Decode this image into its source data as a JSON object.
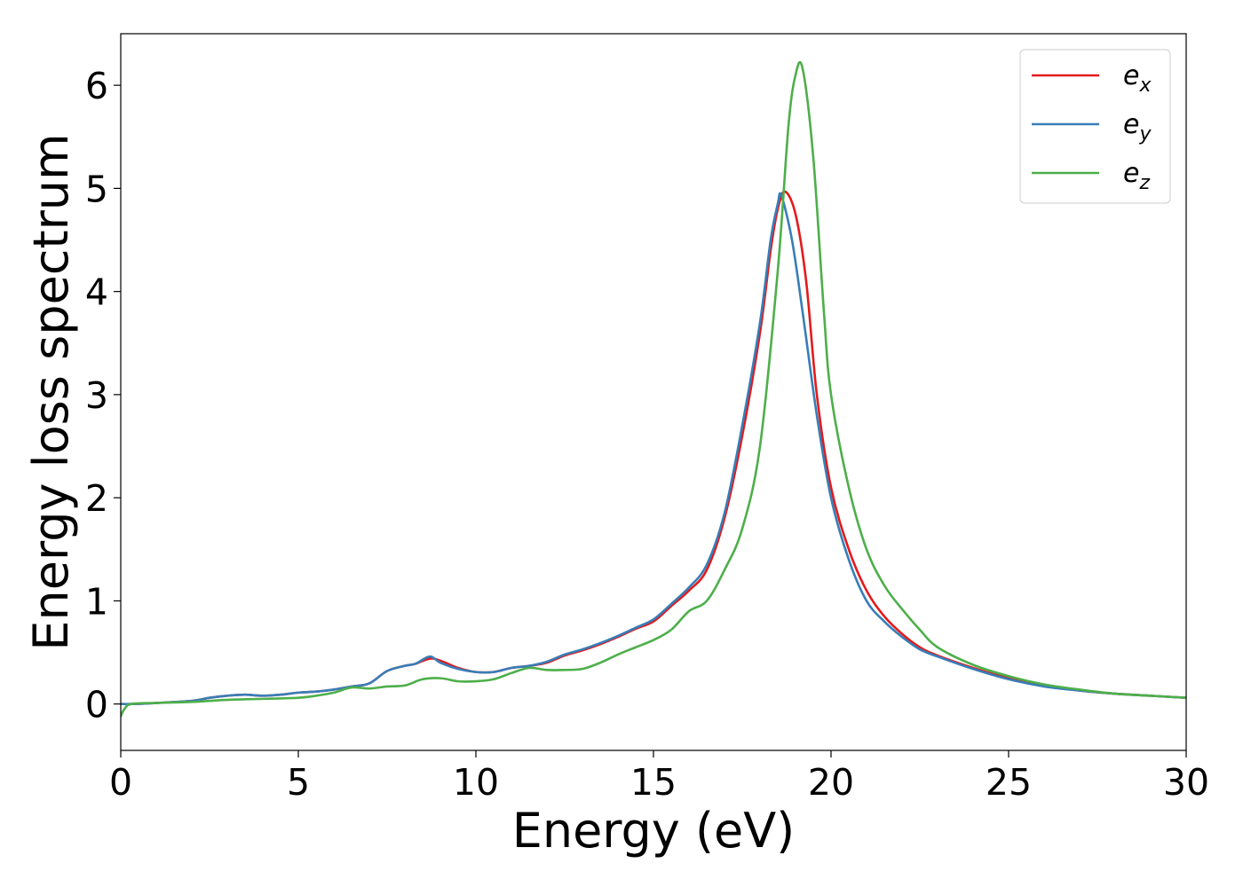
{
  "chart_data": {
    "type": "line",
    "title": "",
    "xlabel": "Energy (eV)",
    "ylabel": "Energy loss spectrum",
    "xlim": [
      0,
      30
    ],
    "ylim": [
      -0.45,
      6.5
    ],
    "xticks": [
      "0",
      "5",
      "10",
      "15",
      "20",
      "25",
      "30"
    ],
    "yticks": [
      "0",
      "1",
      "2",
      "3",
      "4",
      "5",
      "6"
    ],
    "grid": false,
    "legend_position": "top-right",
    "series": [
      {
        "name": "e_x",
        "label_main": "e",
        "label_sub": "x",
        "color": "#e41a1c",
        "x": [
          0,
          0.3,
          1,
          2,
          2.5,
          3,
          3.5,
          4,
          4.5,
          5,
          5.5,
          6,
          6.5,
          7,
          7.5,
          8,
          8.3,
          8.7,
          9,
          9.5,
          10,
          10.5,
          11,
          11.5,
          12,
          12.5,
          13,
          13.5,
          14,
          14.5,
          15,
          15.5,
          16,
          16.5,
          17,
          17.5,
          18,
          18.3,
          18.5,
          18.7,
          19,
          19.3,
          19.6,
          20,
          20.5,
          21,
          21.5,
          22,
          22.5,
          23,
          24,
          25,
          26,
          27,
          28,
          29,
          30
        ],
        "y": [
          0.0,
          0.0,
          0.01,
          0.03,
          0.06,
          0.08,
          0.09,
          0.08,
          0.09,
          0.11,
          0.12,
          0.14,
          0.17,
          0.2,
          0.32,
          0.37,
          0.39,
          0.44,
          0.42,
          0.35,
          0.31,
          0.31,
          0.35,
          0.37,
          0.4,
          0.47,
          0.52,
          0.58,
          0.65,
          0.73,
          0.8,
          0.95,
          1.1,
          1.3,
          1.8,
          2.6,
          3.6,
          4.4,
          4.8,
          4.97,
          4.75,
          4.1,
          3.0,
          2.1,
          1.5,
          1.1,
          0.85,
          0.68,
          0.55,
          0.47,
          0.35,
          0.25,
          0.18,
          0.13,
          0.1,
          0.08,
          0.06
        ]
      },
      {
        "name": "e_y",
        "label_main": "e",
        "label_sub": "y",
        "color": "#377eb8",
        "x": [
          0,
          0.3,
          1,
          2,
          2.5,
          3,
          3.5,
          4,
          4.5,
          5,
          5.5,
          6,
          6.5,
          7,
          7.5,
          8,
          8.3,
          8.7,
          9,
          9.5,
          10,
          10.5,
          11,
          11.5,
          12,
          12.5,
          13,
          13.5,
          14,
          14.5,
          15,
          15.5,
          16,
          16.5,
          17,
          17.5,
          18,
          18.3,
          18.5,
          18.6,
          18.9,
          19.2,
          19.6,
          20,
          20.5,
          21,
          21.5,
          22,
          22.5,
          23,
          24,
          25,
          26,
          27,
          28,
          29,
          30
        ],
        "y": [
          0.0,
          0.0,
          0.01,
          0.03,
          0.06,
          0.08,
          0.09,
          0.08,
          0.09,
          0.11,
          0.12,
          0.14,
          0.17,
          0.2,
          0.32,
          0.37,
          0.39,
          0.46,
          0.4,
          0.34,
          0.31,
          0.31,
          0.35,
          0.37,
          0.41,
          0.48,
          0.53,
          0.59,
          0.66,
          0.74,
          0.82,
          0.97,
          1.13,
          1.35,
          1.85,
          2.7,
          3.7,
          4.5,
          4.85,
          4.93,
          4.5,
          3.8,
          2.8,
          2.0,
          1.4,
          1.0,
          0.8,
          0.65,
          0.53,
          0.46,
          0.34,
          0.24,
          0.17,
          0.13,
          0.1,
          0.08,
          0.06
        ]
      },
      {
        "name": "e_z",
        "label_main": "e",
        "label_sub": "z",
        "color": "#4daf4a",
        "x": [
          0,
          0.1,
          0.3,
          1,
          2,
          3,
          4,
          5,
          5.5,
          6,
          6.5,
          7,
          7.5,
          8,
          8.5,
          9,
          9.5,
          10,
          10.5,
          11,
          11.5,
          12,
          12.5,
          13,
          13.5,
          14,
          14.5,
          15,
          15.5,
          16,
          16.5,
          17,
          17.5,
          18,
          18.5,
          18.8,
          19.0,
          19.2,
          19.5,
          19.8,
          20,
          20.5,
          21,
          21.5,
          22,
          22.5,
          23,
          24,
          25,
          26,
          27,
          28,
          29,
          30
        ],
        "y": [
          -0.12,
          -0.05,
          0.0,
          0.01,
          0.02,
          0.04,
          0.05,
          0.06,
          0.08,
          0.11,
          0.16,
          0.15,
          0.17,
          0.18,
          0.24,
          0.25,
          0.22,
          0.22,
          0.24,
          0.3,
          0.35,
          0.33,
          0.33,
          0.34,
          0.4,
          0.48,
          0.55,
          0.62,
          0.72,
          0.9,
          1.0,
          1.3,
          1.7,
          2.5,
          4.2,
          5.6,
          6.1,
          6.16,
          5.3,
          3.8,
          3.0,
          2.1,
          1.5,
          1.15,
          0.92,
          0.72,
          0.55,
          0.38,
          0.27,
          0.19,
          0.14,
          0.1,
          0.08,
          0.06
        ]
      }
    ]
  }
}
